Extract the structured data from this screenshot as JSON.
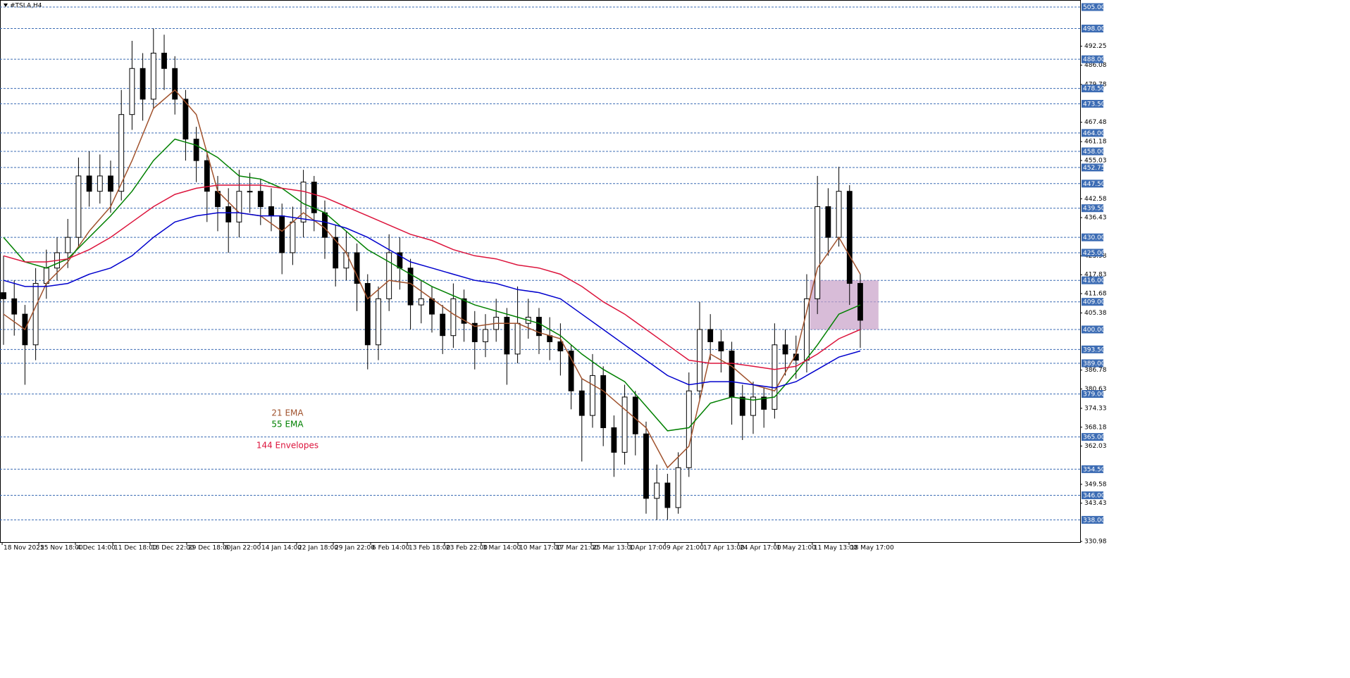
{
  "chart_data": {
    "type": "candlestick",
    "title": "#TSLA,H4",
    "xlim": [
      -0.33,
      100.53
    ],
    "ylim": [
      330.75,
      507.3
    ],
    "xticks": [
      {
        "value": -0.13,
        "label": "18 Nov 2025"
      },
      {
        "value": 3.29,
        "label": "25 Nov 18:00"
      },
      {
        "value": 6.71,
        "label": "4 Dec 14:00"
      },
      {
        "value": 10.2,
        "label": "11 Dec 18:00"
      },
      {
        "value": 13.68,
        "label": "18 Dec 22:00"
      },
      {
        "value": 17.1,
        "label": "29 Dec 18:00"
      },
      {
        "value": 20.53,
        "label": "6 Jan 22:00"
      },
      {
        "value": 23.95,
        "label": "14 Jan 14:00"
      },
      {
        "value": 27.37,
        "label": "22 Jan 18:00"
      },
      {
        "value": 30.79,
        "label": "29 Jan 22:00"
      },
      {
        "value": 34.28,
        "label": "6 Feb 14:00"
      },
      {
        "value": 37.7,
        "label": "13 Feb 18:00"
      },
      {
        "value": 41.18,
        "label": "23 Feb 22:00"
      },
      {
        "value": 44.6,
        "label": "3 Mar 14:00"
      },
      {
        "value": 48.03,
        "label": "10 Mar 17:00"
      },
      {
        "value": 51.45,
        "label": "17 Mar 21:00"
      },
      {
        "value": 54.87,
        "label": "25 Mar 13:00"
      },
      {
        "value": 58.29,
        "label": "1 Apr 17:00"
      },
      {
        "value": 61.78,
        "label": "9 Apr 21:00"
      },
      {
        "value": 65.2,
        "label": "17 Apr 13:00"
      },
      {
        "value": 68.62,
        "label": "24 Apr 17:00"
      },
      {
        "value": 72.04,
        "label": "1 May 21:00"
      },
      {
        "value": 75.52,
        "label": "11 May 13:00"
      },
      {
        "value": 78.95,
        "label": "18 May 17:00"
      }
    ],
    "yticks": [
      492.25,
      486.08,
      479.78,
      467.48,
      461.18,
      455.03,
      442.58,
      436.43,
      423.98,
      417.83,
      411.68,
      405.38,
      386.78,
      380.63,
      374.33,
      368.18,
      362.03,
      349.58,
      343.43,
      330.98
    ],
    "levels": [
      {
        "value": 505,
        "label": "505.00"
      },
      {
        "value": 498,
        "label": "498.00"
      },
      {
        "value": 488,
        "label": "488.00"
      },
      {
        "value": 478.5,
        "label": "478.50"
      },
      {
        "value": 473.5,
        "label": "473.50"
      },
      {
        "value": 464,
        "label": "464.00"
      },
      {
        "value": 458,
        "label": "458.00"
      },
      {
        "value": 452.75,
        "label": "452.75"
      },
      {
        "value": 447.5,
        "label": "447.50"
      },
      {
        "value": 439.5,
        "label": "439.50"
      },
      {
        "value": 430,
        "label": "430.00"
      },
      {
        "value": 425,
        "label": "425.00"
      },
      {
        "value": 416,
        "label": "416.00"
      },
      {
        "value": 409,
        "label": "409.00"
      },
      {
        "value": 400,
        "label": "400.00"
      },
      {
        "value": 393.5,
        "label": "393.50"
      },
      {
        "value": 389,
        "label": "389.00"
      },
      {
        "value": 379,
        "label": "379.00"
      },
      {
        "value": 365,
        "label": "365.00"
      },
      {
        "value": 354.5,
        "label": "354.50"
      },
      {
        "value": 346,
        "label": "346.00"
      },
      {
        "value": 338,
        "label": "338.00"
      }
    ],
    "level_color": "#3c6cb4",
    "up_color": "#ffffff",
    "down_color": "#000000",
    "open": [
      412,
      410,
      405,
      395,
      415,
      420,
      425,
      430,
      450,
      445,
      450,
      445,
      470,
      485,
      475,
      490,
      485,
      475,
      462,
      455,
      445,
      440,
      435,
      445,
      445,
      440,
      437,
      425,
      435,
      448,
      438,
      430,
      420,
      425,
      415,
      395,
      410,
      425,
      420,
      408,
      410,
      405,
      398,
      410,
      402,
      396,
      400,
      404,
      392,
      402,
      404,
      398,
      396,
      393,
      380,
      372,
      385,
      368,
      360,
      378,
      366,
      345,
      350,
      342,
      355,
      380,
      400,
      396,
      393,
      378,
      372,
      378,
      374,
      395,
      392,
      390,
      410,
      440,
      430,
      445,
      415
    ],
    "high": [
      424,
      416,
      408,
      420,
      426,
      430,
      436,
      456,
      458,
      457,
      455,
      478,
      494,
      490,
      498,
      496,
      489,
      478,
      466,
      458,
      450,
      446,
      452,
      451,
      449,
      446,
      441,
      440,
      452,
      450,
      442,
      434,
      432,
      428,
      418,
      414,
      431,
      430,
      423,
      416,
      414,
      408,
      415,
      413,
      406,
      405,
      410,
      407,
      414,
      410,
      407,
      404,
      402,
      395,
      384,
      392,
      388,
      372,
      382,
      380,
      370,
      356,
      353,
      360,
      386,
      409,
      405,
      400,
      396,
      382,
      383,
      381,
      402,
      400,
      398,
      418,
      450,
      446,
      453,
      447,
      418
    ],
    "low": [
      395,
      398,
      382,
      390,
      410,
      416,
      420,
      427,
      440,
      441,
      438,
      442,
      465,
      468,
      472,
      478,
      470,
      455,
      448,
      435,
      432,
      425,
      430,
      438,
      434,
      432,
      418,
      421,
      430,
      432,
      423,
      414,
      416,
      406,
      387,
      390,
      406,
      413,
      400,
      402,
      399,
      392,
      394,
      396,
      387,
      391,
      396,
      382,
      389,
      397,
      392,
      390,
      385,
      374,
      357,
      368,
      362,
      352,
      356,
      359,
      340,
      338,
      338,
      340,
      352,
      377,
      390,
      386,
      369,
      364,
      366,
      368,
      371,
      385,
      384,
      386,
      405,
      424,
      427,
      408,
      394
    ],
    "close": [
      410,
      405,
      395,
      415,
      420,
      425,
      430,
      450,
      445,
      450,
      445,
      470,
      485,
      475,
      490,
      485,
      475,
      462,
      455,
      445,
      440,
      435,
      445,
      445,
      440,
      437,
      425,
      435,
      448,
      438,
      430,
      420,
      425,
      415,
      395,
      410,
      425,
      420,
      408,
      410,
      405,
      398,
      410,
      402,
      396,
      400,
      404,
      392,
      402,
      404,
      398,
      396,
      393,
      380,
      372,
      385,
      368,
      360,
      378,
      366,
      345,
      350,
      342,
      355,
      380,
      400,
      396,
      393,
      378,
      372,
      378,
      374,
      395,
      392,
      390,
      410,
      440,
      430,
      445,
      415,
      403
    ],
    "lines": {
      "x": [
        0,
        2,
        4,
        6,
        8,
        10,
        12,
        14,
        16,
        18,
        20,
        22,
        24,
        26,
        28,
        30,
        32,
        34,
        36,
        38,
        40,
        42,
        44,
        46,
        48,
        50,
        52,
        54,
        56,
        58,
        60,
        62,
        64,
        66,
        68,
        70,
        72,
        74,
        76,
        78,
        80
      ],
      "series": [
        {
          "name": "21 EMA",
          "color": "#a0522d",
          "values": [
            405,
            400,
            415,
            422,
            432,
            440,
            455,
            472,
            478,
            470,
            445,
            438,
            437,
            432,
            438,
            433,
            425,
            410,
            416,
            415,
            410,
            405,
            401,
            402,
            402,
            399,
            397,
            384,
            380,
            374,
            368,
            355,
            362,
            392,
            388,
            382,
            380,
            392,
            420,
            430,
            418
          ]
        },
        {
          "name": "55 EMA",
          "color": "#008000",
          "values": [
            430,
            422,
            420,
            423,
            430,
            437,
            445,
            455,
            462,
            460,
            456,
            450,
            449,
            446,
            441,
            438,
            432,
            426,
            422,
            418,
            414,
            411,
            408,
            406,
            404,
            402,
            398,
            392,
            387,
            383,
            375,
            367,
            368,
            376,
            378,
            377,
            378,
            386,
            395,
            405,
            408
          ]
        },
        {
          "name": "144 Envelopes",
          "color": "#dc143c",
          "values": [
            424,
            422,
            422,
            423,
            426,
            430,
            435,
            440,
            444,
            446,
            447,
            447,
            447,
            446,
            445,
            443,
            440,
            437,
            434,
            431,
            429,
            426,
            424,
            423,
            421,
            420,
            418,
            414,
            409,
            405,
            400,
            395,
            390,
            389,
            389,
            388,
            387,
            388,
            392,
            397,
            400
          ]
        },
        {
          "color": "#0000cd",
          "values": [
            416,
            414,
            414,
            415,
            418,
            420,
            424,
            430,
            435,
            437,
            438,
            438,
            437,
            437,
            436,
            435,
            433,
            430,
            426,
            422,
            420,
            418,
            416,
            415,
            413,
            412,
            410,
            405,
            400,
            395,
            390,
            385,
            382,
            383,
            383,
            382,
            381,
            383,
            387,
            391,
            393
          ]
        }
      ]
    },
    "zone": {
      "x": [
        75.3,
        81.7
      ],
      "y": [
        400,
        416
      ],
      "color": "#c8a0c8"
    }
  }
}
